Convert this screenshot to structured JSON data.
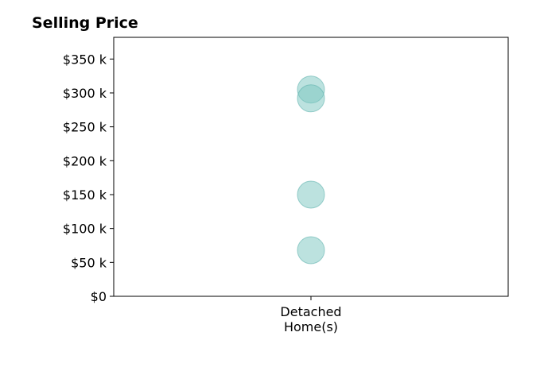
{
  "chart_data": {
    "type": "scatter",
    "title": "Selling Price",
    "xlabel": "",
    "ylabel": "",
    "categories": [
      "Detached\nHome(s)"
    ],
    "series": [
      {
        "category": "Detached\nHome(s)",
        "values": [
          305000,
          292000,
          150000,
          68000
        ]
      }
    ],
    "ylim": [
      0,
      382000
    ],
    "yticks": [
      0,
      50000,
      100000,
      150000,
      200000,
      250000,
      300000,
      350000
    ],
    "ytick_labels": [
      "$0",
      "$50 k",
      "$100 k",
      "$150 k",
      "$200 k",
      "$250 k",
      "$300 k",
      "$350 k"
    ],
    "grid": false,
    "marker_color": "#7ac5bf",
    "marker_edge_color": "#5fb3ad",
    "marker_opacity": 0.5
  }
}
